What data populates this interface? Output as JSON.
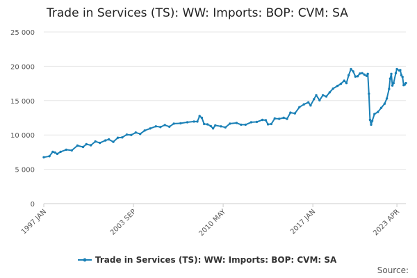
{
  "chart_data": {
    "type": "line",
    "title": "Trade in Services (TS): WW: Imports: BOP: CVM: SA",
    "xlabel": "",
    "ylabel": "",
    "ylim": [
      0,
      25000
    ],
    "y_ticks": [
      0,
      5000,
      10000,
      15000,
      20000,
      25000
    ],
    "y_tick_labels": [
      "0",
      "5 000",
      "10 000",
      "15 000",
      "20 000",
      "25 000"
    ],
    "x_tick_labels": [
      "1997 JAN",
      "2003 SEP",
      "2010 MAY",
      "2017 JAN",
      "2023 APR"
    ],
    "x_tick_index": [
      0,
      80,
      160,
      240,
      315
    ],
    "grid": true,
    "legend_position": "bottom",
    "source_text": "Source:",
    "series": [
      {
        "name": "Trade in Services (TS): WW: Imports: BOP: CVM: SA",
        "color": "#1a80b6",
        "anchors": [
          [
            0,
            6750
          ],
          [
            5,
            6900
          ],
          [
            8,
            7550
          ],
          [
            10,
            7450
          ],
          [
            12,
            7250
          ],
          [
            15,
            7550
          ],
          [
            20,
            7850
          ],
          [
            25,
            7750
          ],
          [
            30,
            8450
          ],
          [
            35,
            8250
          ],
          [
            38,
            8650
          ],
          [
            42,
            8500
          ],
          [
            46,
            9050
          ],
          [
            50,
            8850
          ],
          [
            55,
            9200
          ],
          [
            58,
            9350
          ],
          [
            62,
            9000
          ],
          [
            66,
            9600
          ],
          [
            70,
            9650
          ],
          [
            74,
            10050
          ],
          [
            78,
            10000
          ],
          [
            82,
            10350
          ],
          [
            86,
            10150
          ],
          [
            90,
            10650
          ],
          [
            95,
            10950
          ],
          [
            100,
            11250
          ],
          [
            104,
            11150
          ],
          [
            108,
            11450
          ],
          [
            112,
            11200
          ],
          [
            116,
            11650
          ],
          [
            122,
            11700
          ],
          [
            128,
            11850
          ],
          [
            134,
            11950
          ],
          [
            137,
            11950
          ],
          [
            139,
            12750
          ],
          [
            141,
            12500
          ],
          [
            143,
            11600
          ],
          [
            146,
            11550
          ],
          [
            149,
            11300
          ],
          [
            151,
            10950
          ],
          [
            153,
            11400
          ],
          [
            158,
            11250
          ],
          [
            162,
            11100
          ],
          [
            166,
            11650
          ],
          [
            172,
            11750
          ],
          [
            176,
            11500
          ],
          [
            180,
            11500
          ],
          [
            185,
            11850
          ],
          [
            190,
            11900
          ],
          [
            195,
            12200
          ],
          [
            198,
            12150
          ],
          [
            200,
            11550
          ],
          [
            203,
            11600
          ],
          [
            206,
            12400
          ],
          [
            210,
            12350
          ],
          [
            214,
            12500
          ],
          [
            217,
            12350
          ],
          [
            220,
            13250
          ],
          [
            224,
            13150
          ],
          [
            228,
            14050
          ],
          [
            232,
            14450
          ],
          [
            236,
            14750
          ],
          [
            238,
            14300
          ],
          [
            241,
            15200
          ],
          [
            243,
            15800
          ],
          [
            246,
            15050
          ],
          [
            249,
            15800
          ],
          [
            252,
            15600
          ],
          [
            255,
            16200
          ],
          [
            258,
            16750
          ],
          [
            262,
            17150
          ],
          [
            265,
            17450
          ],
          [
            268,
            17900
          ],
          [
            270,
            17550
          ],
          [
            272,
            18700
          ],
          [
            274,
            19600
          ],
          [
            276,
            19250
          ],
          [
            278,
            18500
          ],
          [
            280,
            18550
          ],
          [
            282,
            18950
          ],
          [
            284,
            19000
          ],
          [
            286,
            18800
          ],
          [
            288,
            18600
          ],
          [
            289,
            18900
          ],
          [
            290,
            16000
          ],
          [
            291,
            12200
          ],
          [
            292,
            11500
          ],
          [
            293,
            12050
          ],
          [
            295,
            13050
          ],
          [
            298,
            13350
          ],
          [
            301,
            13950
          ],
          [
            304,
            14550
          ],
          [
            306,
            15300
          ],
          [
            308,
            16700
          ],
          [
            309,
            18200
          ],
          [
            310,
            18900
          ],
          [
            311,
            17200
          ],
          [
            312,
            17550
          ],
          [
            314,
            19000
          ],
          [
            315,
            19600
          ],
          [
            317,
            19400
          ],
          [
            318,
            19450
          ],
          [
            319,
            18700
          ],
          [
            320,
            18450
          ],
          [
            321,
            17250
          ],
          [
            322,
            17350
          ],
          [
            323,
            17550
          ]
        ]
      }
    ]
  }
}
